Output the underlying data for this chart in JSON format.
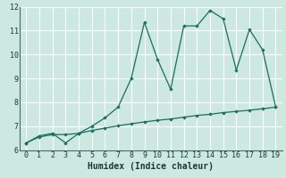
{
  "xlabel": "Humidex (Indice chaleur)",
  "x": [
    0,
    1,
    2,
    3,
    4,
    5,
    6,
    7,
    8,
    9,
    10,
    11,
    12,
    13,
    14,
    15,
    16,
    17,
    18,
    19
  ],
  "line1_y": [
    6.3,
    6.6,
    6.7,
    6.3,
    6.7,
    7.0,
    7.35,
    7.8,
    9.0,
    11.35,
    9.8,
    8.55,
    11.2,
    11.2,
    11.85,
    11.5,
    9.35,
    11.05,
    10.2,
    7.8
  ],
  "line2_y": [
    6.3,
    6.55,
    6.65,
    6.65,
    6.7,
    6.82,
    6.92,
    7.02,
    7.1,
    7.18,
    7.25,
    7.3,
    7.38,
    7.45,
    7.5,
    7.57,
    7.62,
    7.67,
    7.73,
    7.8
  ],
  "line_color": "#1a6e60",
  "bg_color": "#cce8e0",
  "grid_major_color": "#ffffff",
  "grid_minor_color": "#f0c8c8",
  "ylim": [
    6,
    12
  ],
  "xlim": [
    -0.5,
    19.5
  ],
  "yticks": [
    6,
    7,
    8,
    9,
    10,
    11,
    12
  ],
  "xticks": [
    0,
    1,
    2,
    3,
    4,
    5,
    6,
    7,
    8,
    9,
    10,
    11,
    12,
    13,
    14,
    15,
    16,
    17,
    18,
    19
  ],
  "tick_fontsize": 6,
  "xlabel_fontsize": 7
}
